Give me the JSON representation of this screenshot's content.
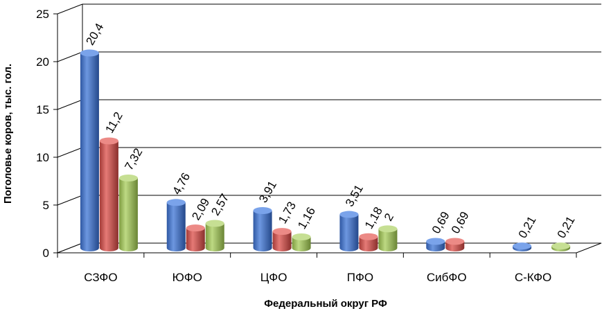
{
  "chart_data": {
    "type": "bar",
    "title": "",
    "xlabel": "Федеральный округ РФ",
    "ylabel": "Поголовье коров, тыс. гол.",
    "ylim": [
      0,
      25
    ],
    "yticks": [
      "0",
      "5",
      "10",
      "15",
      "20",
      "25"
    ],
    "grid": true,
    "legend": "none",
    "categories": [
      "СЗФО",
      "ЮФО",
      "ЦФО",
      "ПФО",
      "СибФО",
      "С-КФО"
    ],
    "series": [
      {
        "color": "#4472C4",
        "values": [
          20.4,
          4.76,
          3.91,
          3.51,
          0.69,
          0.21
        ],
        "labels": [
          "20,4",
          "4,76",
          "3,91",
          "3,51",
          "0,69",
          "0,21"
        ]
      },
      {
        "color": "#C0504D",
        "values": [
          11.2,
          2.09,
          1.73,
          1.18,
          0.69,
          null
        ],
        "labels": [
          "11,2",
          "2,09",
          "1,73",
          "1,18",
          "0,69",
          ""
        ]
      },
      {
        "color": "#9BBB59",
        "values": [
          7.32,
          2.57,
          1.16,
          2,
          null,
          0.21
        ],
        "labels": [
          "7,32",
          "2,57",
          "1,16",
          "2",
          "",
          "0,21"
        ]
      }
    ]
  }
}
